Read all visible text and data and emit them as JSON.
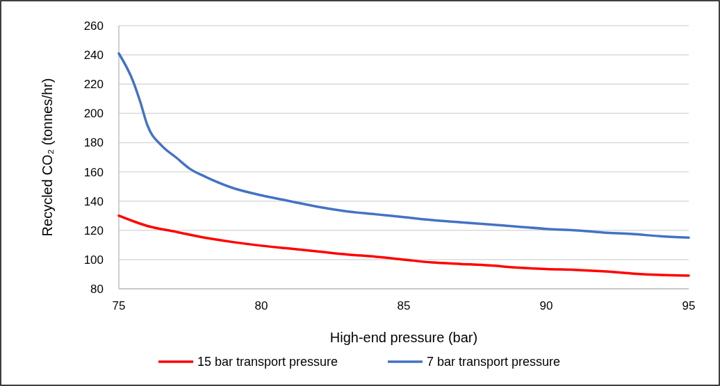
{
  "chart_data": {
    "type": "line",
    "xlabel": "High-end pressure (bar)",
    "ylabel": "Recycled CO₂ (tonnes/hr)",
    "xlim": [
      75,
      95
    ],
    "xticks": [
      75,
      80,
      85,
      90,
      95
    ],
    "ylim": [
      80,
      260
    ],
    "yticks": [
      80,
      100,
      120,
      140,
      160,
      180,
      200,
      220,
      240,
      260
    ],
    "grid": "y",
    "legend": "bottom",
    "marker": "none",
    "line_style": "solid",
    "series": [
      {
        "name": "15 bar transport pressure",
        "color": "#ff0000",
        "x": [
          75,
          76,
          77,
          78,
          79,
          80,
          81,
          82,
          83,
          84,
          85,
          86,
          87,
          88,
          89,
          90,
          91,
          92,
          93,
          94,
          95
        ],
        "values": [
          130,
          123,
          119,
          115,
          112,
          109.5,
          107.5,
          105.5,
          103.5,
          102,
          100,
          98,
          97,
          96,
          94.5,
          93.5,
          93,
          92,
          90.5,
          89.5,
          89
        ]
      },
      {
        "name": "7 bar transport pressure",
        "color": "#4472c4",
        "x": [
          75,
          75.5,
          75.75,
          76,
          76.5,
          77,
          77.5,
          78,
          79,
          80,
          81,
          82,
          83,
          84,
          85,
          86,
          87,
          88,
          89,
          90,
          91,
          92,
          93,
          94,
          95
        ],
        "values": [
          241,
          222,
          208,
          192,
          178,
          170,
          162,
          157,
          149,
          144,
          140,
          136,
          133,
          131,
          129,
          127,
          125.5,
          124,
          122.5,
          121,
          120,
          118.5,
          117.5,
          116,
          115
        ]
      }
    ]
  }
}
